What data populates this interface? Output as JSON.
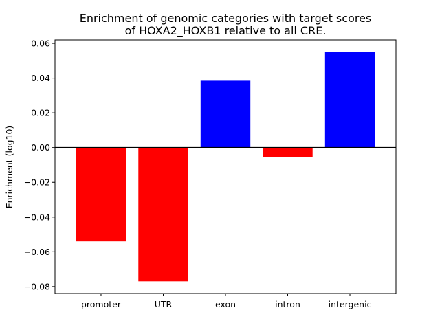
{
  "chart_data": {
    "type": "bar",
    "title_lines": [
      "Enrichment of genomic categories with target scores",
      "of HOXA2_HOXB1 relative to all CRE."
    ],
    "xlabel": "",
    "ylabel": "Enrichment (log10)",
    "categories": [
      "promoter",
      "UTR",
      "exon",
      "intron",
      "intergenic"
    ],
    "values": [
      -0.054,
      -0.077,
      0.0385,
      -0.0055,
      0.055
    ],
    "ylim": [
      -0.084,
      0.062
    ],
    "yticks": [
      0.06,
      0.04,
      0.02,
      0.0,
      -0.02,
      -0.04,
      -0.06,
      -0.08
    ],
    "ytick_labels": [
      "0.06",
      "0.04",
      "0.02",
      "0.00",
      "−0.02",
      "−0.04",
      "−0.06",
      "−0.08"
    ],
    "colors": {
      "positive": "#0000ff",
      "negative": "#ff0000",
      "baseline": "#000000"
    },
    "grid": false,
    "zero_line": true
  }
}
